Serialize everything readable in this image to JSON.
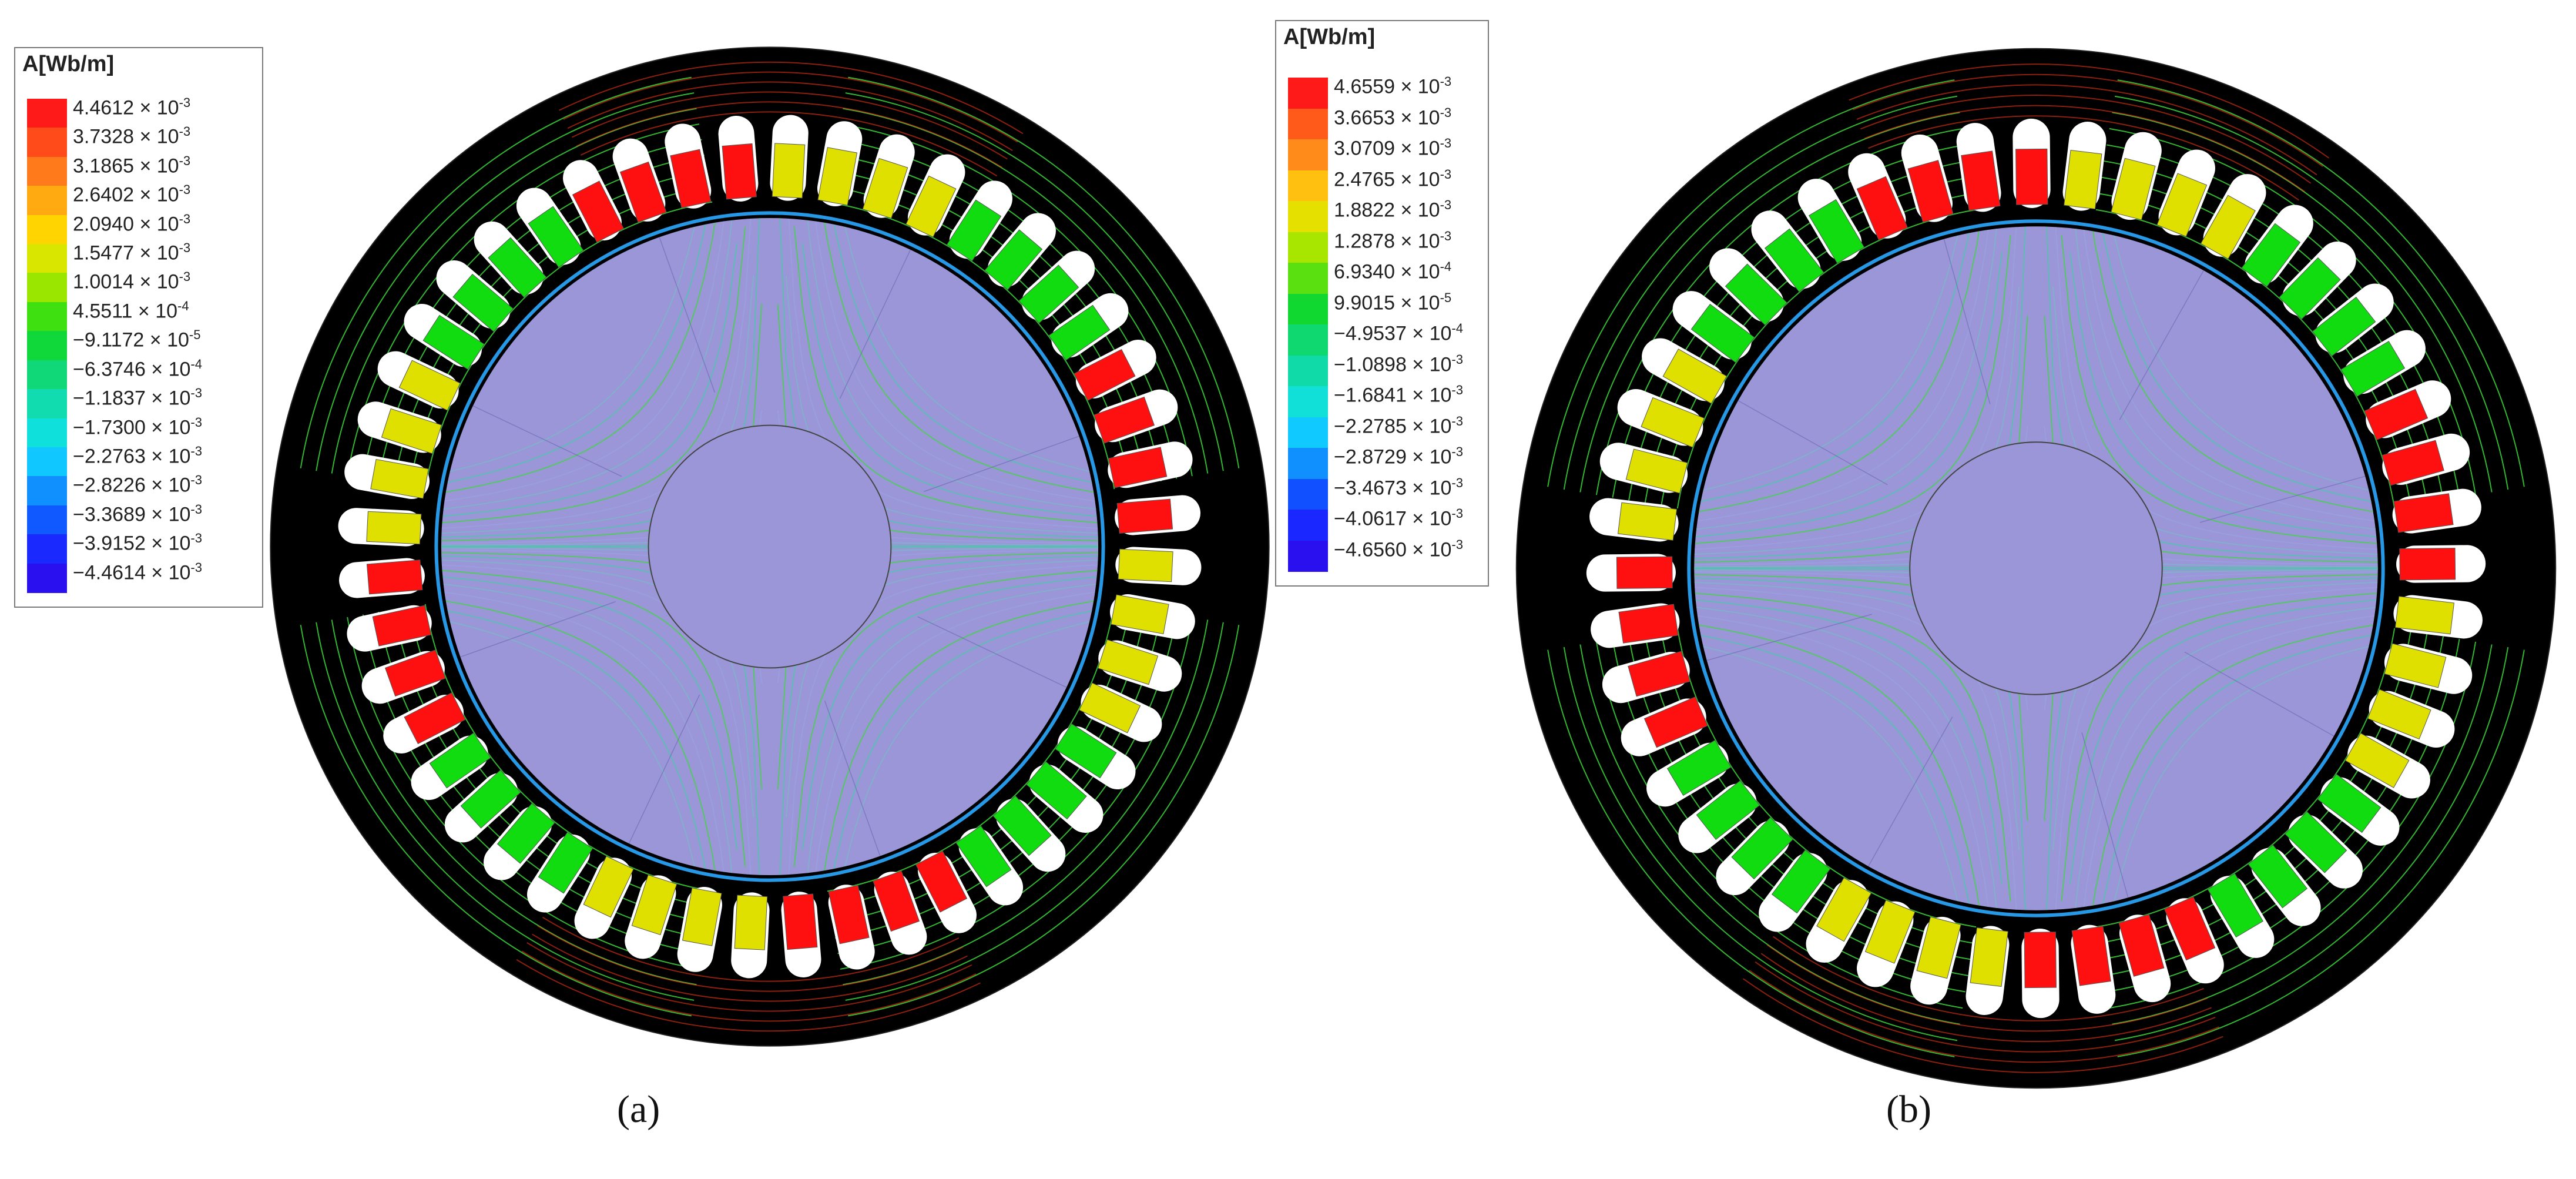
{
  "figure": {
    "panels": [
      {
        "id": "a",
        "caption": "(a)",
        "legend": {
          "title": "A[Wb/m]",
          "entries": [
            {
              "value": "4.4612 × 10",
              "exp": "-3",
              "color": "#ff1a1a"
            },
            {
              "value": "3.7328 × 10",
              "exp": "-3",
              "color": "#ff4a1a"
            },
            {
              "value": "3.1865 × 10",
              "exp": "-3",
              "color": "#ff7a1a"
            },
            {
              "value": "2.6402 × 10",
              "exp": "-3",
              "color": "#ffaa10"
            },
            {
              "value": "2.0940 × 10",
              "exp": "-3",
              "color": "#ffd400"
            },
            {
              "value": "1.5477 × 10",
              "exp": "-3",
              "color": "#d8e600"
            },
            {
              "value": "1.0014 × 10",
              "exp": "-3",
              "color": "#9ae600"
            },
            {
              "value": "4.5511 × 10",
              "exp": "-4",
              "color": "#3fe010"
            },
            {
              "value": "−9.1172 × 10",
              "exp": "-5",
              "color": "#10d83a"
            },
            {
              "value": "−6.3746 × 10",
              "exp": "-4",
              "color": "#10d878"
            },
            {
              "value": "−1.1837 × 10",
              "exp": "-3",
              "color": "#10dcb0"
            },
            {
              "value": "−1.7300 × 10",
              "exp": "-3",
              "color": "#10e0dc"
            },
            {
              "value": "−2.2763 × 10",
              "exp": "-3",
              "color": "#10c8ff"
            },
            {
              "value": "−2.8226 × 10",
              "exp": "-3",
              "color": "#1090ff"
            },
            {
              "value": "−3.3689 × 10",
              "exp": "-3",
              "color": "#1058ff"
            },
            {
              "value": "−3.9152 × 10",
              "exp": "-3",
              "color": "#1a2aff"
            },
            {
              "value": "−4.4614 × 10",
              "exp": "-3",
              "color": "#2a10ee"
            }
          ]
        }
      },
      {
        "id": "b",
        "caption": "(b)",
        "legend": {
          "title": "A[Wb/m]",
          "entries": [
            {
              "value": "4.6559 × 10",
              "exp": "-3",
              "color": "#ff1a1a"
            },
            {
              "value": "3.6653 × 10",
              "exp": "-3",
              "color": "#ff5a1a"
            },
            {
              "value": "3.0709 × 10",
              "exp": "-3",
              "color": "#ff8c1a"
            },
            {
              "value": "2.4765 × 10",
              "exp": "-3",
              "color": "#ffc010"
            },
            {
              "value": "1.8822 × 10",
              "exp": "-3",
              "color": "#e6e000"
            },
            {
              "value": "1.2878 × 10",
              "exp": "-3",
              "color": "#a8e600"
            },
            {
              "value": "6.9340 × 10",
              "exp": "-4",
              "color": "#5ae010"
            },
            {
              "value": "9.9015 × 10",
              "exp": "-5",
              "color": "#10d830"
            },
            {
              "value": "−4.9537 × 10",
              "exp": "-4",
              "color": "#10d870"
            },
            {
              "value": "−1.0898 × 10",
              "exp": "-3",
              "color": "#10daa8"
            },
            {
              "value": "−1.6841 × 10",
              "exp": "-3",
              "color": "#10e0d8"
            },
            {
              "value": "−2.2785 × 10",
              "exp": "-3",
              "color": "#10caff"
            },
            {
              "value": "−2.8729 × 10",
              "exp": "-3",
              "color": "#1090ff"
            },
            {
              "value": "−3.4673 × 10",
              "exp": "-3",
              "color": "#1050ff"
            },
            {
              "value": "−4.0617 × 10",
              "exp": "-3",
              "color": "#1a28ff"
            },
            {
              "value": "−4.6560 × 10",
              "exp": "-3",
              "color": "#2a10ee"
            }
          ]
        }
      }
    ],
    "colors": {
      "stator_core": "#000000",
      "rotor": "#9a96d8",
      "shaft": "#9a96d8",
      "slot": "#ffffff",
      "phase_red": "#ff1010",
      "phase_yellow": "#e0e000",
      "phase_green": "#10dc10",
      "flux_line": "#3cd83c"
    }
  }
}
